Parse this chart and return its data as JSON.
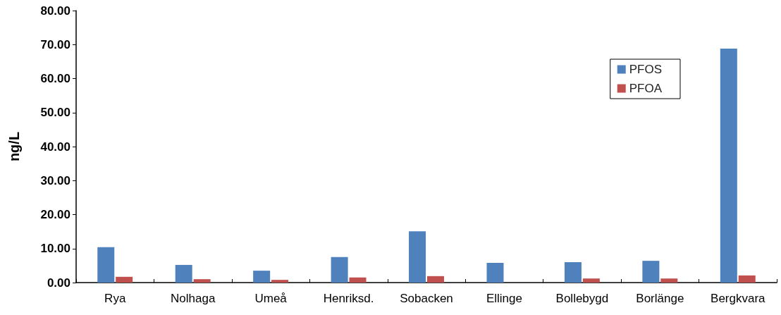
{
  "chart_data": {
    "type": "bar",
    "ylabel": "ng/L",
    "categories": [
      "Rya",
      "Nolhaga",
      "Umeå",
      "Henriksd.",
      "Sobacken",
      "Ellinge",
      "Bollebygd",
      "Borlänge",
      "Bergkvara"
    ],
    "series": [
      {
        "name": "PFOS",
        "color": "#4f81bd",
        "values": [
          10.4,
          5.2,
          3.5,
          7.5,
          15.1,
          5.8,
          6.0,
          6.4,
          68.8
        ]
      },
      {
        "name": "PFOA",
        "color": "#c0504d",
        "values": [
          1.7,
          1.0,
          0.8,
          1.5,
          1.9,
          null,
          1.2,
          1.2,
          2.1
        ]
      }
    ],
    "ylim": [
      0,
      80
    ],
    "yticks": [
      {
        "value": 0,
        "label": "0.00"
      },
      {
        "value": 10,
        "label": "10.00"
      },
      {
        "value": 20,
        "label": "20.00"
      },
      {
        "value": 30,
        "label": "30.00"
      },
      {
        "value": 40,
        "label": "40.00"
      },
      {
        "value": 50,
        "label": "50.00"
      },
      {
        "value": 60,
        "label": "60.00"
      },
      {
        "value": 70,
        "label": "70.00"
      },
      {
        "value": 80,
        "label": "80.00"
      }
    ],
    "grid": false,
    "legend": "top right"
  }
}
